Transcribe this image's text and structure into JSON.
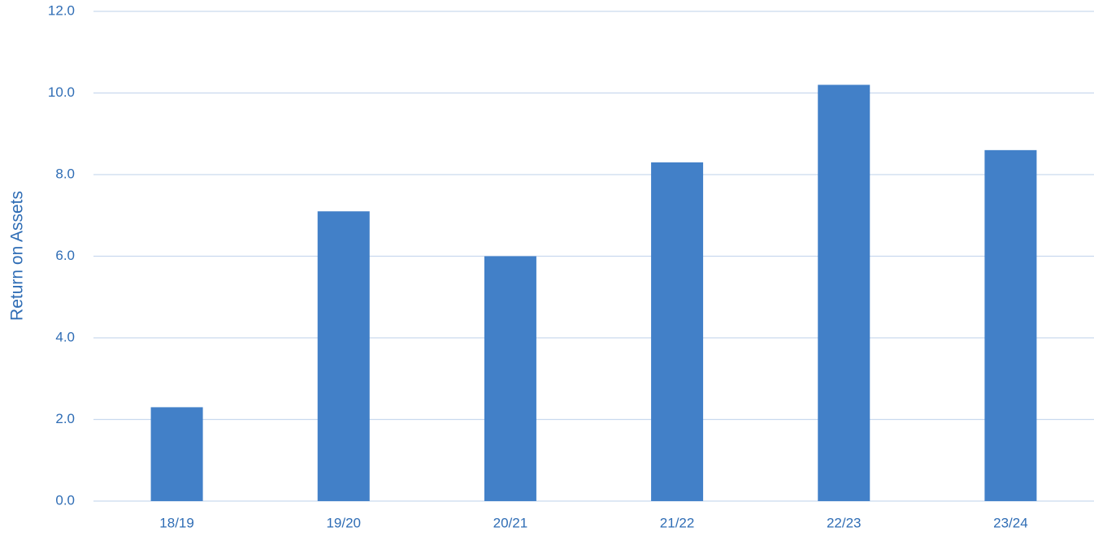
{
  "chart_data": {
    "type": "bar",
    "y_label": "Return on Assets",
    "categories": [
      "18/19",
      "19/20",
      "20/21",
      "21/22",
      "22/23",
      "23/24"
    ],
    "values": [
      2.3,
      7.1,
      6.0,
      8.3,
      10.2,
      8.6
    ],
    "color": "#4280c8",
    "ylim": [
      0,
      12
    ],
    "yticks": [
      {
        "value": 0,
        "label": "0.0"
      },
      {
        "value": 2,
        "label": "2.0"
      },
      {
        "value": 4,
        "label": "4.0"
      },
      {
        "value": 6,
        "label": "6.0"
      },
      {
        "value": 8,
        "label": "8.0"
      },
      {
        "value": 10,
        "label": "10.0"
      },
      {
        "value": 12,
        "label": "12.0"
      }
    ],
    "grid": true
  }
}
